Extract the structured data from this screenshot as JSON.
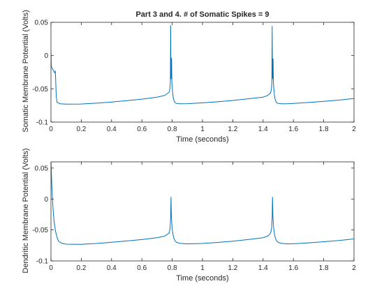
{
  "chart_data": [
    {
      "type": "line",
      "title": "Part 3 and 4. # of Somatic Spikes = 9",
      "xlabel": "Time (seconds)",
      "ylabel": "Somatic Membrane Potential (Volts)",
      "xlim": [
        0,
        2
      ],
      "ylim": [
        -0.1,
        0.05
      ],
      "xticks": [
        0,
        0.2,
        0.4,
        0.6,
        0.8,
        1,
        1.2,
        1.4,
        1.6,
        1.8,
        2
      ],
      "xtick_labels": [
        "0",
        "0.2",
        "0.4",
        "0.6",
        "0.8",
        "1",
        "1.2",
        "1.4",
        "1.6",
        "1.8",
        "2"
      ],
      "yticks": [
        -0.1,
        -0.05,
        0,
        0.05
      ],
      "ytick_labels": [
        "-0.1",
        "-0.05",
        "0",
        "0.05"
      ],
      "grid": false,
      "series": [
        {
          "color": "#0072BD",
          "x": [
            0,
            0.002,
            0.005,
            0.01,
            0.02,
            0.025,
            0.028,
            0.03,
            0.035,
            0.04,
            0.06,
            0.1,
            0.2,
            0.3,
            0.4,
            0.5,
            0.6,
            0.7,
            0.75,
            0.78,
            0.785,
            0.788,
            0.79,
            0.792,
            0.794,
            0.796,
            0.798,
            0.8,
            0.803,
            0.806,
            0.81,
            0.815,
            0.82,
            0.83,
            0.85,
            0.9,
            1.0,
            1.1,
            1.2,
            1.3,
            1.4,
            1.43,
            1.45,
            1.455,
            1.458,
            1.46,
            1.462,
            1.464,
            1.466,
            1.468,
            1.47,
            1.473,
            1.476,
            1.48,
            1.485,
            1.49,
            1.5,
            1.52,
            1.56,
            1.6,
            1.7,
            1.8,
            1.9,
            2.0
          ],
          "y": [
            0.005,
            -0.015,
            -0.018,
            -0.02,
            -0.024,
            -0.026,
            -0.023,
            -0.03,
            -0.062,
            -0.07,
            -0.0725,
            -0.073,
            -0.0728,
            -0.0715,
            -0.0698,
            -0.0678,
            -0.0655,
            -0.0625,
            -0.06,
            -0.055,
            -0.05,
            -0.04,
            0.045,
            -0.035,
            -0.03,
            -0.004,
            -0.04,
            -0.048,
            -0.055,
            -0.062,
            -0.066,
            -0.069,
            -0.071,
            -0.072,
            -0.0725,
            -0.0723,
            -0.071,
            -0.0695,
            -0.0675,
            -0.065,
            -0.0625,
            -0.06,
            -0.056,
            -0.05,
            -0.04,
            0.044,
            -0.035,
            -0.03,
            -0.005,
            -0.04,
            -0.048,
            -0.055,
            -0.062,
            -0.066,
            -0.069,
            -0.071,
            -0.072,
            -0.0725,
            -0.0725,
            -0.072,
            -0.0705,
            -0.0688,
            -0.067,
            -0.0645
          ]
        }
      ]
    },
    {
      "type": "line",
      "title": "",
      "xlabel": "Time (seconds)",
      "ylabel": "Dendritic Membrane Potential (Volts)",
      "xlim": [
        0,
        2
      ],
      "ylim": [
        -0.1,
        0.06
      ],
      "xticks": [
        0,
        0.2,
        0.4,
        0.6,
        0.8,
        1,
        1.2,
        1.4,
        1.6,
        1.8,
        2
      ],
      "xtick_labels": [
        "0",
        "0.2",
        "0.4",
        "0.6",
        "0.8",
        "1",
        "1.2",
        "1.4",
        "1.6",
        "1.8",
        "2"
      ],
      "yticks": [
        -0.1,
        -0.05,
        0,
        0.05
      ],
      "ytick_labels": [
        "-0.1",
        "-0.05",
        "0",
        "0.05"
      ],
      "grid": false,
      "series": [
        {
          "color": "#0072BD",
          "x": [
            0,
            0.003,
            0.006,
            0.01,
            0.015,
            0.02,
            0.03,
            0.04,
            0.05,
            0.07,
            0.1,
            0.2,
            0.3,
            0.4,
            0.5,
            0.6,
            0.7,
            0.75,
            0.78,
            0.786,
            0.79,
            0.792,
            0.795,
            0.8,
            0.806,
            0.812,
            0.82,
            0.83,
            0.85,
            0.9,
            1.0,
            1.1,
            1.2,
            1.3,
            1.4,
            1.43,
            1.45,
            1.456,
            1.46,
            1.462,
            1.465,
            1.47,
            1.476,
            1.482,
            1.49,
            1.5,
            1.52,
            1.56,
            1.6,
            1.7,
            1.8,
            1.9,
            2.0
          ],
          "y": [
            0.06,
            0.04,
            0.02,
            0.0,
            -0.02,
            -0.035,
            -0.052,
            -0.062,
            -0.068,
            -0.0715,
            -0.073,
            -0.0732,
            -0.0718,
            -0.0698,
            -0.0678,
            -0.0655,
            -0.0625,
            -0.06,
            -0.055,
            -0.048,
            -0.03,
            0.003,
            -0.03,
            -0.048,
            -0.058,
            -0.064,
            -0.068,
            -0.07,
            -0.0715,
            -0.0725,
            -0.0718,
            -0.0702,
            -0.0682,
            -0.0655,
            -0.0625,
            -0.06,
            -0.055,
            -0.048,
            -0.03,
            0.003,
            -0.03,
            -0.048,
            -0.058,
            -0.064,
            -0.068,
            -0.07,
            -0.0715,
            -0.0725,
            -0.0722,
            -0.0708,
            -0.069,
            -0.067,
            -0.0645
          ]
        }
      ]
    }
  ]
}
